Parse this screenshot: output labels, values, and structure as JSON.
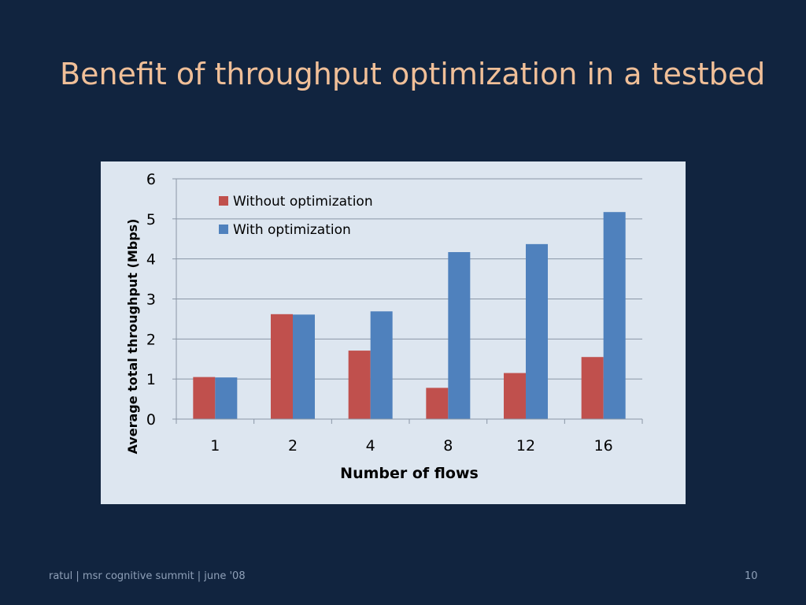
{
  "slide": {
    "title": "Benefit of throughput optimization in a testbed",
    "footer": "ratul | msr cognitive summit | june '08",
    "page_number": "10"
  },
  "colors": {
    "background": "#11243f",
    "title": "#f0bf98",
    "panel": "#dde6f0",
    "without": "#c0504d",
    "with": "#4f81bd",
    "grid": "#8a96a6"
  },
  "chart_data": {
    "type": "bar",
    "categories": [
      "1",
      "2",
      "4",
      "8",
      "12",
      "16"
    ],
    "series": [
      {
        "name": "Without optimization",
        "values": [
          1.05,
          2.62,
          1.71,
          0.78,
          1.15,
          1.55
        ]
      },
      {
        "name": "With optimization",
        "values": [
          1.04,
          2.61,
          2.69,
          4.17,
          4.37,
          5.17
        ]
      }
    ],
    "xlabel": "Number of flows",
    "ylabel": "Average total throughput (Mbps)",
    "ylim": [
      0,
      6
    ],
    "yticks": [
      "0",
      "1",
      "2",
      "3",
      "4",
      "5",
      "6"
    ],
    "grid": true,
    "legend": "top-left inside plot"
  }
}
